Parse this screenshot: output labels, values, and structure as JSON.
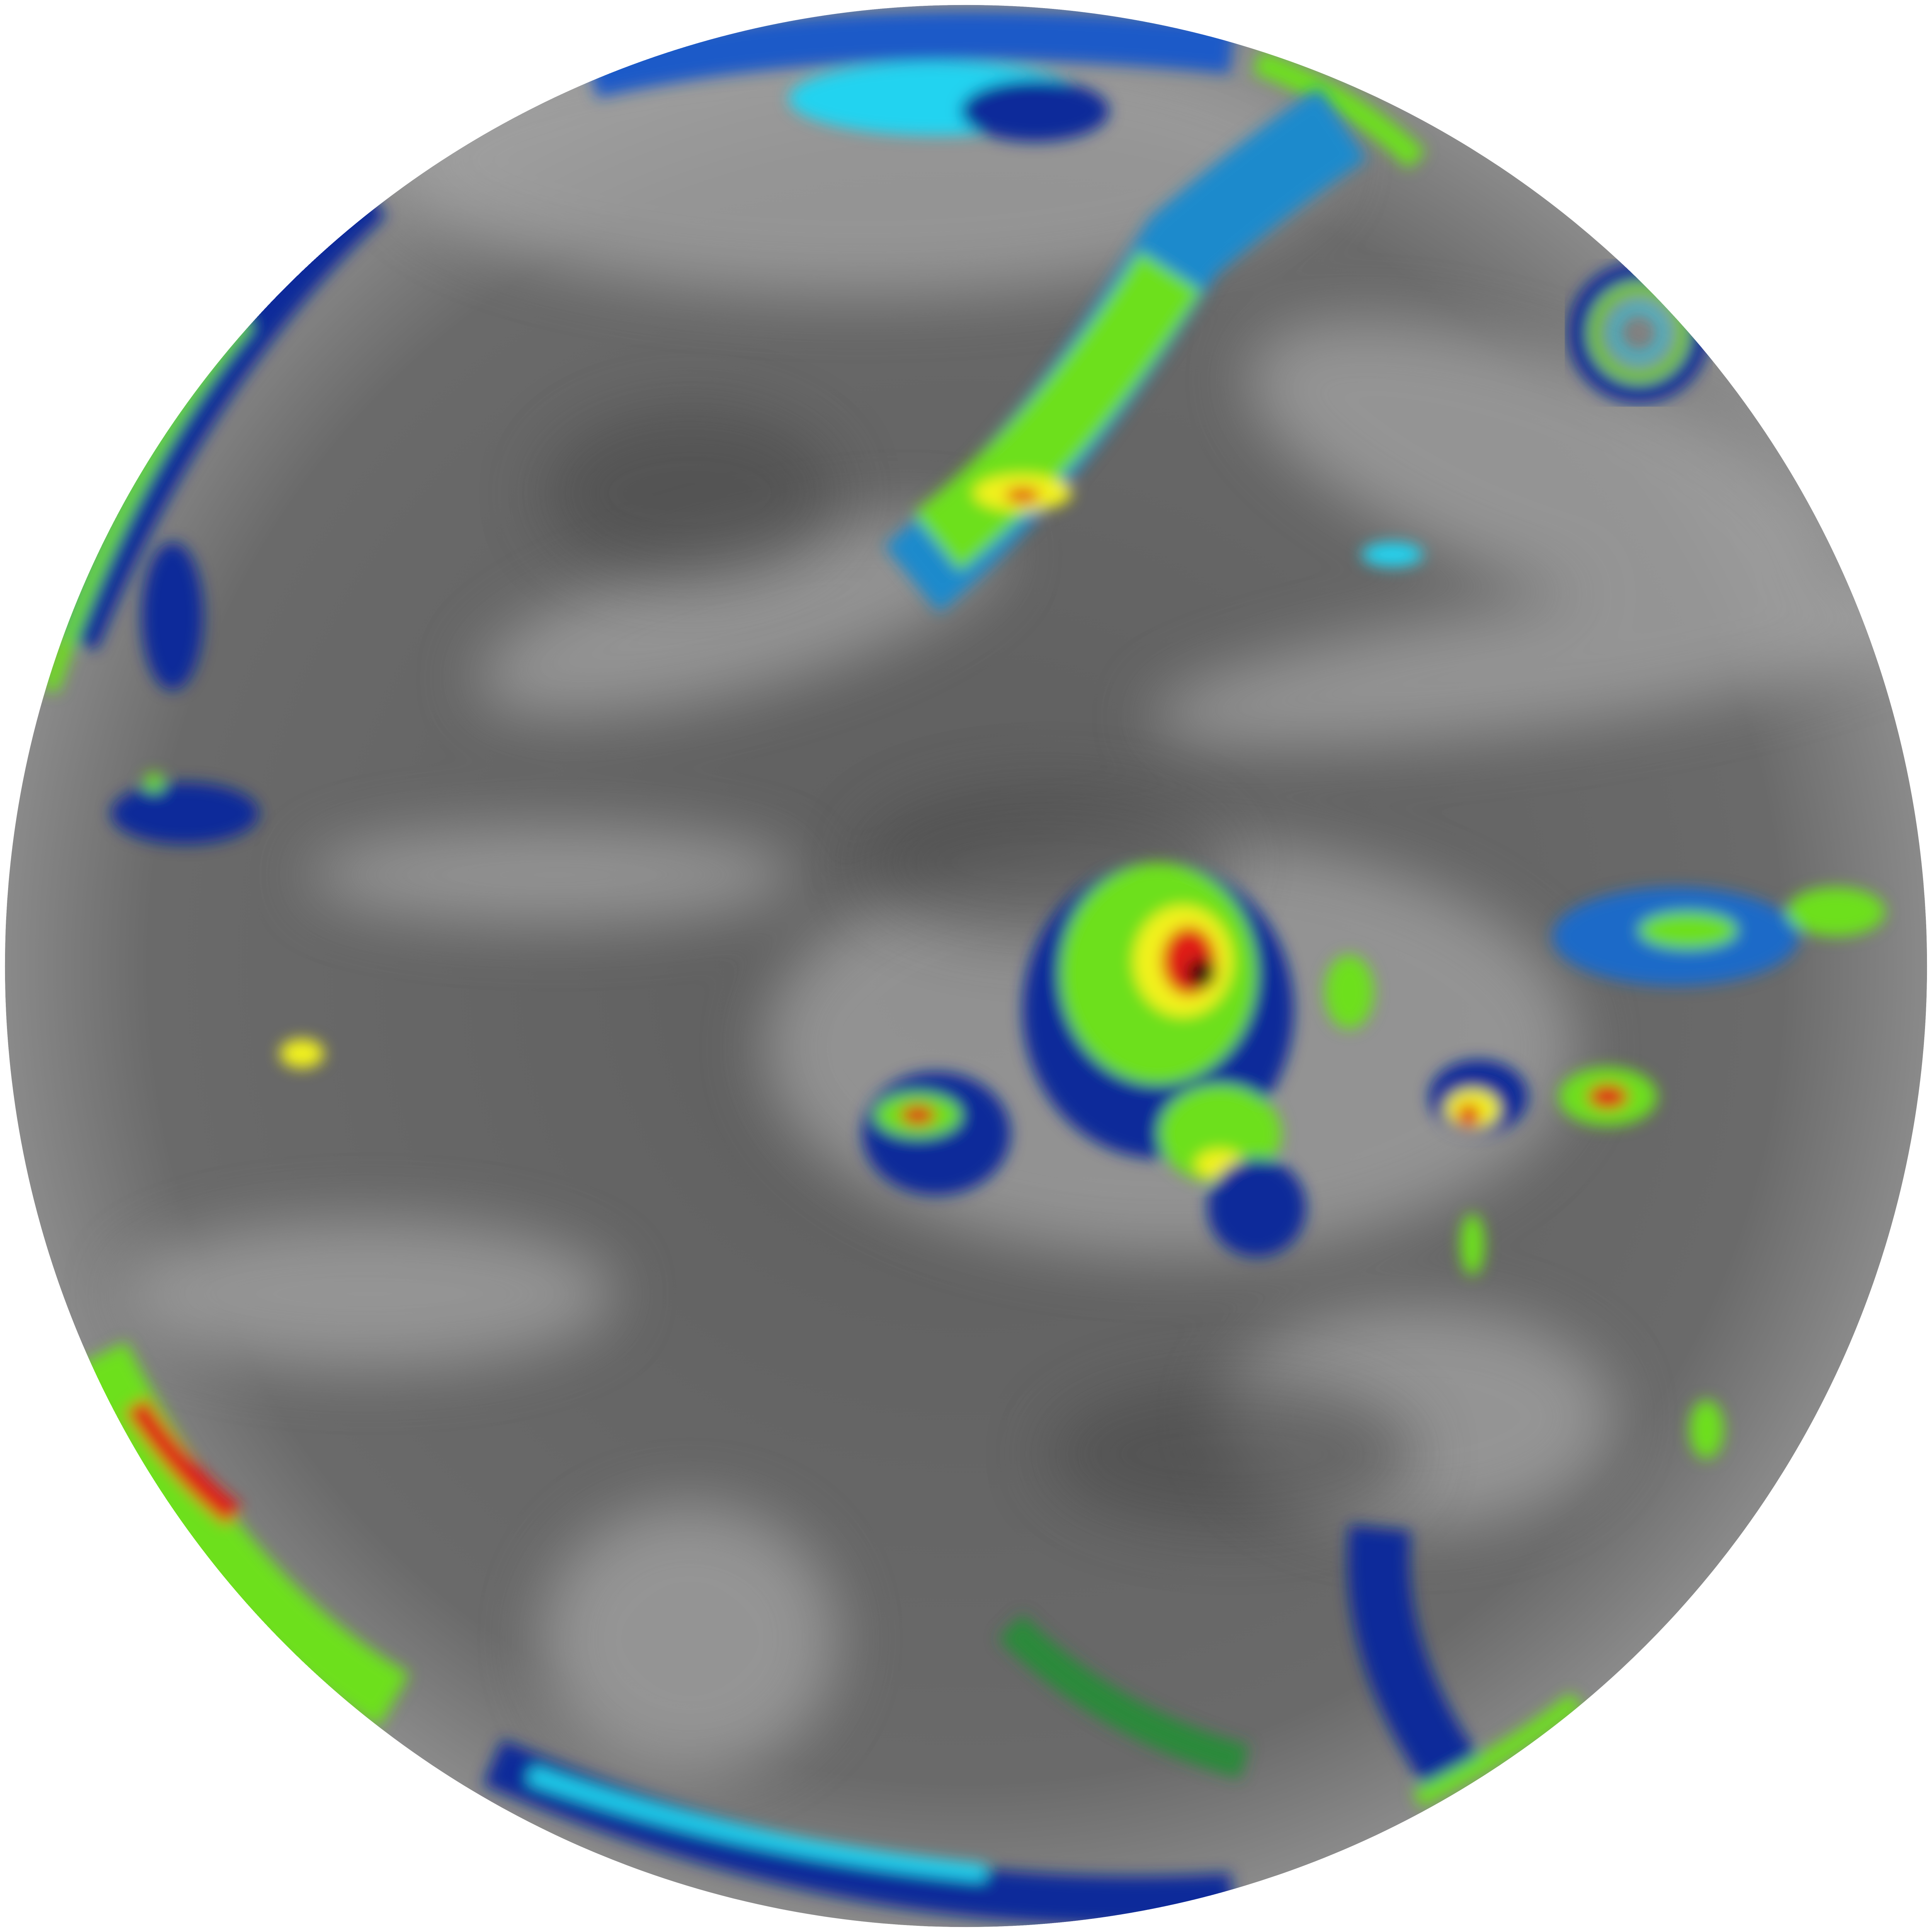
{
  "image": {
    "kind": "full-disk infrared satellite view of Earth",
    "colors": {
      "background": "#ffffff",
      "disk_base": "#6a6a6a",
      "disk_dark": "#4e4e4e",
      "cloud_light": "#b8b8b8",
      "enh_cyan": "#22d3f0",
      "enh_blue": "#0a2a9a",
      "enh_green": "#6de01a",
      "enh_yellow": "#f2f21a",
      "enh_red": "#e01e14",
      "enh_dark": "#3a0a0a"
    }
  }
}
